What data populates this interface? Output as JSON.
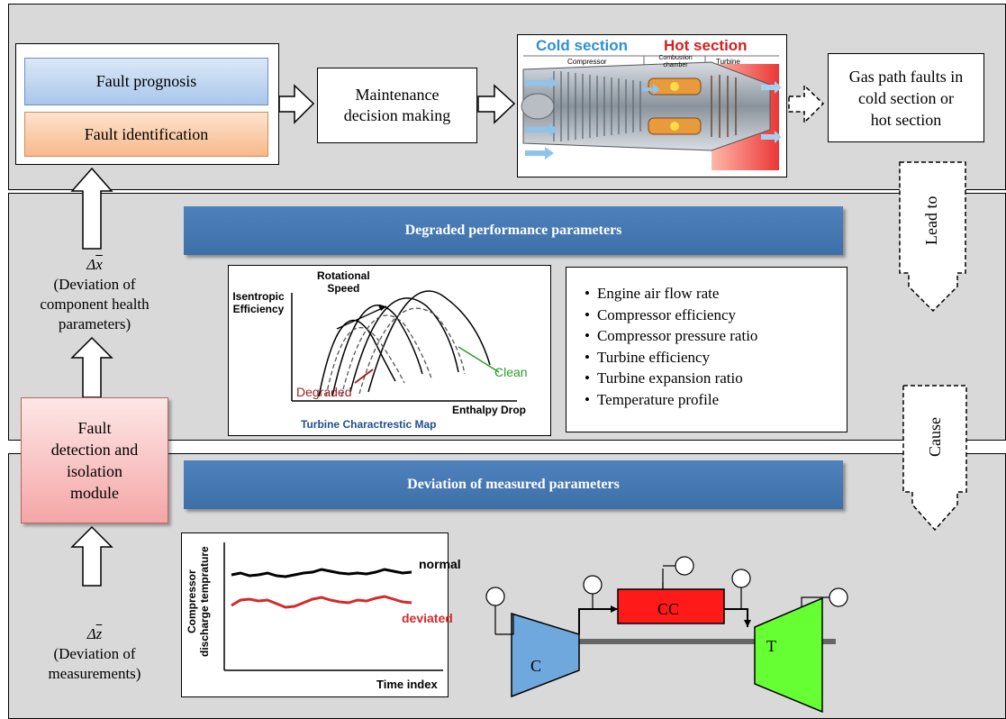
{
  "prognosis": {
    "label": "Fault prognosis"
  },
  "identification": {
    "label": "Fault identification"
  },
  "maintenance": {
    "line1": "Maintenance",
    "line2": "decision making"
  },
  "engine": {
    "cold": "Cold section",
    "hot": "Hot section",
    "compressor": "Compressor",
    "combustion": "Combustion",
    "chamber": "chamber",
    "turbine": "Turbine"
  },
  "gaspath": {
    "line1": "Gas path faults in",
    "line2": "cold section or",
    "line3": "hot section"
  },
  "degraded_bar": {
    "label": "Degraded performance parameters"
  },
  "deviation_bar": {
    "label": "Deviation of measured parameters"
  },
  "lead_to": {
    "label": "Lead to"
  },
  "cause": {
    "label": "Cause"
  },
  "delta_x": {
    "symbol": "Δᵟ",
    "line1": "(Deviation of",
    "line2": "component health",
    "line3": "parameters)"
  },
  "delta_z": {
    "symbol": "Δz",
    "line1": "(Deviation of",
    "line2": "measurements)"
  },
  "fdi": {
    "line1": "Fault",
    "line2": "detection and",
    "line3": "isolation",
    "line4": "module"
  },
  "map": {
    "ylabel1": "Isentropic",
    "ylabel2": "Efficiency",
    "speed1": "Rotational",
    "speed2": "Speed",
    "clean": "Clean",
    "degraded": "Degraded",
    "xlabel": "Enthalpy Drop",
    "caption": "Turbine Charactrestic Map"
  },
  "params": [
    "Engine air flow rate",
    "Compressor efficiency",
    "Compressor pressure ratio",
    "Turbine efficiency",
    "Turbine expansion ratio",
    "Temperature profile"
  ],
  "tchart": {
    "ylabel1": "Compressor",
    "ylabel2": "discharge temprature",
    "normal": "normal",
    "deviated": "deviated",
    "xlabel": "Time index"
  },
  "schematic": {
    "c": "C",
    "cc": "CC",
    "t": "T"
  },
  "colors": {
    "band": "#d9d9d9",
    "blue": "#4f81bd",
    "prognosis": "#c6d9f1",
    "identification": "#fbd4b4",
    "fdi": "#f4b6b6",
    "compressor": "#6fa8dc",
    "cc": "#ff1a1a",
    "turbine": "#66ff33"
  }
}
